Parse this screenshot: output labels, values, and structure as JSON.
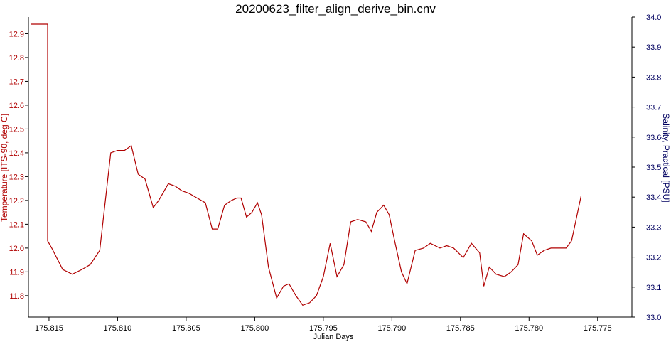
{
  "chart_data": {
    "type": "line",
    "title": "20200623_filter_align_derive_bin.cnv",
    "xlabel": "Julian Days",
    "ylabel_left": "Temperature [ITS-90, deg C]",
    "ylabel_right": "Salinity, Practical [PSU]",
    "xlim": [
      175.8165,
      175.7725
    ],
    "ylim_left": [
      11.71,
      12.97
    ],
    "ylim_right": [
      33.0,
      34.0
    ],
    "x_ticks": [
      "175.815",
      "175.810",
      "175.805",
      "175.800",
      "175.795",
      "175.790",
      "175.785",
      "175.780",
      "175.775"
    ],
    "x_tick_values": [
      175.815,
      175.81,
      175.805,
      175.8,
      175.795,
      175.79,
      175.785,
      175.78,
      175.775
    ],
    "y_left_ticks": [
      "12.9",
      "12.8",
      "12.7",
      "12.6",
      "12.5",
      "12.4",
      "12.3",
      "12.2",
      "12.1",
      "12.0",
      "11.9",
      "11.8"
    ],
    "y_left_tick_values": [
      12.9,
      12.8,
      12.7,
      12.6,
      12.5,
      12.4,
      12.3,
      12.2,
      12.1,
      12.0,
      11.9,
      11.8
    ],
    "y_right_ticks": [
      "34.0",
      "33.9",
      "33.8",
      "33.7",
      "33.6",
      "33.5",
      "33.4",
      "33.3",
      "33.2",
      "33.1",
      "33.0"
    ],
    "y_right_tick_values": [
      34.0,
      33.9,
      33.8,
      33.7,
      33.6,
      33.5,
      33.4,
      33.3,
      33.2,
      33.1,
      33.0
    ],
    "grid": false,
    "series": [
      {
        "name": "Temperature [ITS-90, deg C]",
        "axis": "left",
        "color": "#b00000",
        "x": [
          175.8163,
          175.8151,
          175.8151,
          175.8148,
          175.814,
          175.8133,
          175.8126,
          175.812,
          175.8113,
          175.8105,
          175.81,
          175.8095,
          175.809,
          175.8085,
          175.808,
          175.8074,
          175.807,
          175.8063,
          175.8058,
          175.8053,
          175.8048,
          175.8042,
          175.8036,
          175.8031,
          175.8027,
          175.8022,
          175.8017,
          175.8013,
          175.801,
          175.8006,
          175.8002,
          175.7998,
          175.7995,
          175.799,
          175.7984,
          175.7979,
          175.7975,
          175.797,
          175.7965,
          175.796,
          175.7955,
          175.795,
          175.7945,
          175.794,
          175.7935,
          175.793,
          175.7925,
          175.7919,
          175.7915,
          175.7911,
          175.7906,
          175.7902,
          175.7898,
          175.7893,
          175.7889,
          175.7883,
          175.7877,
          175.7872,
          175.7865,
          175.786,
          175.7855,
          175.7848,
          175.7842,
          175.7836,
          175.7833,
          175.7829,
          175.7824,
          175.7818,
          175.7813,
          175.7808,
          175.7804,
          175.7798,
          175.7794,
          175.7789,
          175.7784,
          175.7778,
          175.7773,
          175.7769,
          175.7762
        ],
        "values": [
          12.94,
          12.94,
          12.03,
          12.0,
          11.91,
          11.89,
          11.91,
          11.93,
          11.99,
          12.4,
          12.41,
          12.41,
          12.43,
          12.31,
          12.29,
          12.17,
          12.2,
          12.27,
          12.26,
          12.24,
          12.23,
          12.21,
          12.19,
          12.08,
          12.08,
          12.18,
          12.2,
          12.21,
          12.21,
          12.13,
          12.15,
          12.19,
          12.14,
          11.92,
          11.79,
          11.84,
          11.85,
          11.8,
          11.76,
          11.77,
          11.8,
          11.88,
          12.02,
          11.88,
          11.93,
          12.11,
          12.12,
          12.11,
          12.07,
          12.15,
          12.18,
          12.14,
          12.03,
          11.9,
          11.85,
          11.99,
          12.0,
          12.02,
          12.0,
          12.01,
          12.0,
          11.96,
          12.02,
          11.98,
          11.84,
          11.92,
          11.89,
          11.88,
          11.9,
          11.93,
          12.06,
          12.03,
          11.97,
          11.99,
          12.0,
          12.0,
          12.0,
          12.03,
          12.22
        ]
      }
    ]
  }
}
